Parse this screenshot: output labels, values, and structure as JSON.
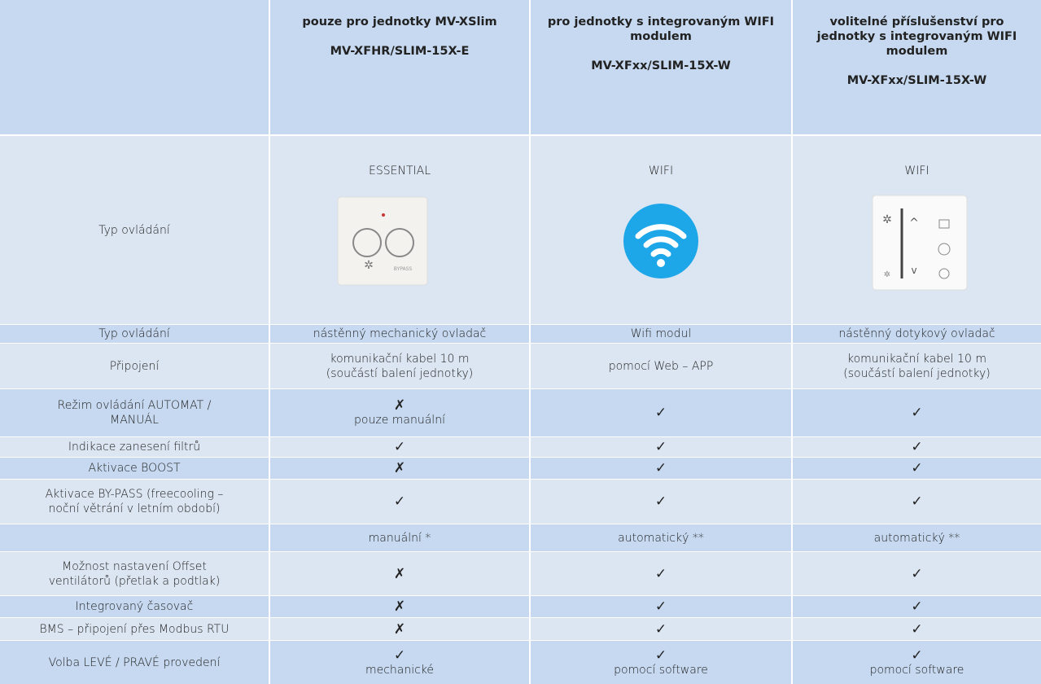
{
  "table": {
    "header": [
      {
        "title": "pouze pro jednotky MV-XSlim",
        "model": "MV-XFHR/SLIM-15X-E"
      },
      {
        "title": "pro jednotky s integrovaným WIFI modulem",
        "model": "MV-XFxx/SLIM-15X-W"
      },
      {
        "title": "volitelné příslušenství pro jednotky s integrovaným WIFI modulem",
        "model": "MV-XFxx/SLIM-15X-W"
      }
    ],
    "image_row": {
      "label": "Typ ovládání",
      "names": [
        "ESSENTIAL",
        "WIFI",
        "WIFI"
      ]
    },
    "rows": [
      {
        "label": [
          "Typ ovládání"
        ],
        "cells": [
          [
            "nástěnný mechanický ovladač"
          ],
          [
            "Wifi modul"
          ],
          [
            "nástěnný dotykový ovladač"
          ]
        ]
      },
      {
        "label": [
          "Připojení"
        ],
        "cells": [
          [
            "komunikační kabel 10 m",
            "(součástí balení jednotky)"
          ],
          [
            "pomocí Web – APP"
          ],
          [
            "komunikační kabel 10 m",
            "(součástí balení jednotky)"
          ]
        ]
      },
      {
        "label": [
          "Režim ovládání AUTOMAT /",
          "MANUÁL"
        ],
        "cells": [
          [
            "✗",
            "pouze manuální"
          ],
          [
            "✓"
          ],
          [
            "✓"
          ]
        ]
      },
      {
        "label": [
          "Indikace zanesení filtrů"
        ],
        "cells": [
          [
            "✓"
          ],
          [
            "✓"
          ],
          [
            "✓"
          ]
        ]
      },
      {
        "label": [
          "Aktivace BOOST"
        ],
        "cells": [
          [
            "✗"
          ],
          [
            "✓"
          ],
          [
            "✓"
          ]
        ]
      },
      {
        "label": [
          "Aktivace BY-PASS (freecooling –",
          "noční větrání v letním období)"
        ],
        "cells": [
          [
            "✓"
          ],
          [
            "✓"
          ],
          [
            "✓"
          ]
        ]
      },
      {
        "cells": [
          [
            "manuální *"
          ],
          [
            "automatický **"
          ],
          [
            "automatický **"
          ]
        ]
      },
      {
        "label": [
          "Možnost nastavení Offset",
          "ventilátorů (přetlak a podtlak)"
        ],
        "cells": [
          [
            "✗"
          ],
          [
            "✓"
          ],
          [
            "✓"
          ]
        ]
      },
      {
        "label": [
          "Integrovaný časovač"
        ],
        "cells": [
          [
            "✗"
          ],
          [
            "✓"
          ],
          [
            "✓"
          ]
        ]
      },
      {
        "label": [
          "BMS – připojení přes Modbus RTU"
        ],
        "cells": [
          [
            "✗"
          ],
          [
            "✓"
          ],
          [
            "✓"
          ]
        ]
      },
      {
        "label": [
          "Volba LEVÉ / PRAVÉ provedení"
        ],
        "cells": [
          [
            "✓",
            "mechanické"
          ],
          [
            "✓",
            "pomocí software"
          ],
          [
            "✓",
            "pomocí software"
          ]
        ]
      }
    ]
  }
}
